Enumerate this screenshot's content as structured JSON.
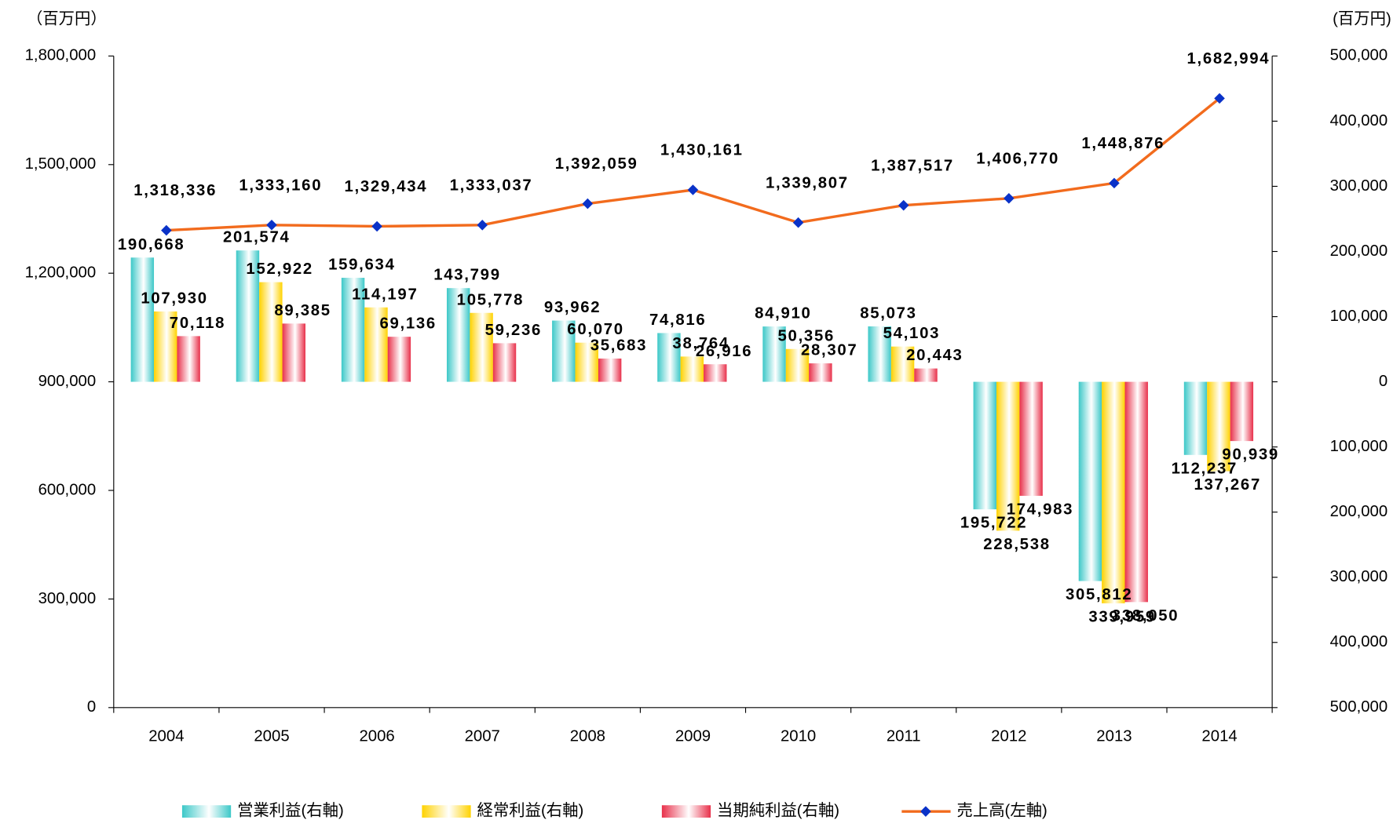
{
  "chart_data": {
    "type": "bar",
    "y_unit": "（百万円）",
    "y2_unit": "(百万円)",
    "categories": [
      "2004",
      "2005",
      "2006",
      "2007",
      "2008",
      "2009",
      "2010",
      "2011",
      "2012",
      "2013",
      "2014"
    ],
    "ylim": [
      0,
      1800000
    ],
    "yticks": [
      0,
      {
        "value": 300000,
        "label": "300,000"
      },
      {
        "value": 600000,
        "label": "600,000"
      },
      {
        "value": 900000,
        "label": "900,000"
      },
      {
        "value": 1200000,
        "label": "1,200,000"
      },
      {
        "value": 1500000,
        "label": "1,500,000"
      },
      {
        "value": 1800000,
        "label": "1,800,000"
      }
    ],
    "y2lim": [
      -500000,
      500000
    ],
    "y2ticks": [
      {
        "value": 500000,
        "label": "500,000"
      },
      {
        "value": 400000,
        "label": "400,000"
      },
      {
        "value": 300000,
        "label": "300,000"
      },
      {
        "value": 200000,
        "label": "200,000"
      },
      {
        "value": 100000,
        "label": "100,000"
      },
      0,
      {
        "value": -100000,
        "label": "100,000"
      },
      {
        "value": -200000,
        "label": "200,000"
      },
      {
        "value": -300000,
        "label": "300,000"
      },
      {
        "value": -400000,
        "label": "400,000"
      },
      {
        "value": -500000,
        "label": "500,000"
      }
    ],
    "series": [
      {
        "name": "営業利益(右軸)",
        "type": "bar",
        "axis": "y2",
        "color": "#3cc8c8",
        "values": [
          190668,
          201574,
          159634,
          143799,
          93962,
          74816,
          84910,
          85073,
          -195722,
          -305812,
          -112237
        ],
        "value_labels": [
          "190,668",
          "201,574",
          "159,634",
          "143,799",
          "93,962",
          "74,816",
          "84,910",
          "85,073",
          "195,722",
          "305,812",
          "112,237"
        ]
      },
      {
        "name": "経常利益(右軸)",
        "type": "bar",
        "axis": "y2",
        "color": "#ffd200",
        "values": [
          107930,
          152922,
          114197,
          105778,
          60070,
          38764,
          50356,
          54103,
          -228538,
          -339959,
          -137267
        ],
        "value_labels": [
          "107,930",
          "152,922",
          "114,197",
          "105,778",
          "60,070",
          "38,764",
          "50,356",
          "54,103",
          "228,538",
          "339,959",
          "137,267"
        ]
      },
      {
        "name": "当期純利益(右軸)",
        "type": "bar",
        "axis": "y2",
        "color": "#e8304a",
        "values": [
          70118,
          89385,
          69136,
          59236,
          35683,
          26916,
          28307,
          20443,
          -174983,
          -338050,
          -90939
        ],
        "value_labels": [
          "70,118",
          "89,385",
          "69,136",
          "59,236",
          "35,683",
          "26,916",
          "28,307",
          "20,443",
          "174,983",
          "338,050",
          "90,939"
        ]
      },
      {
        "name": "売上高(左軸)",
        "type": "line",
        "axis": "y",
        "color": "#f26b1d",
        "marker_color": "#0a32c8",
        "values": [
          1318336,
          1333160,
          1329434,
          1333037,
          1392059,
          1430161,
          1339807,
          1387517,
          1406770,
          1448876,
          1682994
        ],
        "value_labels": [
          "1,318,336",
          "1,333,160",
          "1,329,434",
          "1,333,037",
          "1,392,059",
          "1,430,161",
          "1,339,807",
          "1,387,517",
          "1,406,770",
          "1,448,876",
          "1,682,994"
        ]
      }
    ]
  }
}
